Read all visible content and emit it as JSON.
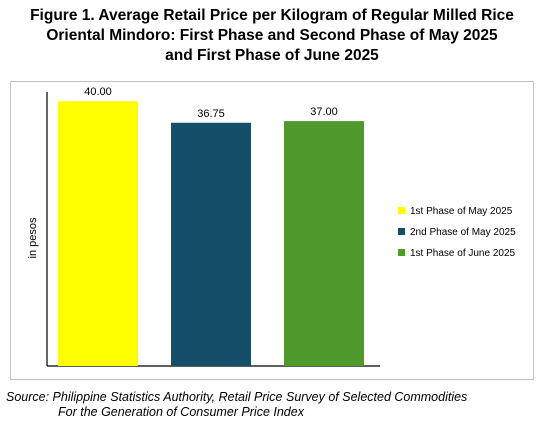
{
  "title": {
    "line1": "Figure 1. Average Retail Price per Kilogram of Regular Milled Rice",
    "line2": "Oriental Mindoro: First Phase and Second Phase of May 2025",
    "line3": "and First Phase of June 2025"
  },
  "chart_data": {
    "type": "bar",
    "categories": [
      "1st Phase of May 2025",
      "2nd Phase of May 2025",
      "1st Phase of June 2025"
    ],
    "values": [
      40.0,
      36.75,
      37.0
    ],
    "value_labels": [
      "40.00",
      "36.75",
      "37.00"
    ],
    "colors": [
      "#FFFF00",
      "#154E68",
      "#4E9A2C"
    ],
    "ylabel": "in pesos",
    "ylim": [
      0,
      42
    ],
    "grid": false,
    "legend": {
      "position": "right",
      "entries": [
        "1st Phase of May 2025",
        "2nd Phase of May 2025",
        "1st Phase of June 2025"
      ]
    }
  },
  "source": {
    "line1": "Source: Philippine Statistics Authority, Retail Price Survey of Selected Commodities",
    "line2": "For the Generation of Consumer Price Index"
  }
}
